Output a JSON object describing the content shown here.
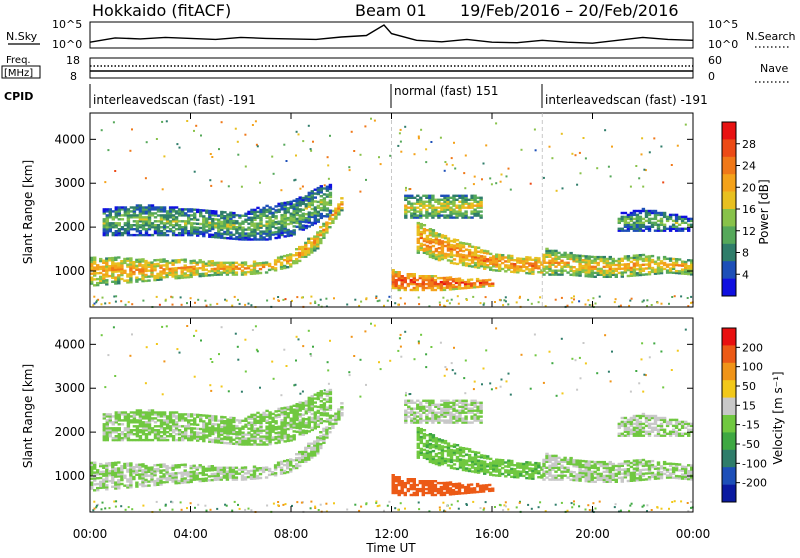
{
  "header": {
    "station": "Hokkaido (fitACF)",
    "beam": "Beam 01",
    "dates": "19/Feb/2016 – 20/Feb/2016"
  },
  "top_panel": {
    "nsky_label": "N.Sky",
    "nsky_ticks": [
      "10^5",
      "10^0"
    ],
    "nsearch_label": "N.Search",
    "nsearch_ticks": [
      "10^5",
      "10^0"
    ],
    "freq_label_1": "Freq.",
    "freq_label_2": "[MHz]",
    "freq_ticks": [
      "18",
      "8"
    ],
    "nave_label": "Nave",
    "nave_ticks": [
      "60",
      "0"
    ],
    "cpid_label": "CPID",
    "cpid_segments": [
      {
        "label": "interleavedscan (fast) -191",
        "start_h": 0,
        "end_h": 12
      },
      {
        "label": "normal (fast) 151",
        "start_h": 12,
        "end_h": 18
      },
      {
        "label": "interleavedscan (fast) -191",
        "start_h": 18,
        "end_h": 24
      }
    ]
  },
  "axes": {
    "y_label": "Slant Range [km]",
    "y_ticks": [
      "1000",
      "2000",
      "3000",
      "4000"
    ],
    "x_label": "Time UT",
    "x_ticks": [
      "00:00",
      "04:00",
      "08:00",
      "12:00",
      "16:00",
      "20:00",
      "00:00"
    ]
  },
  "power_colorbar": {
    "label": "Power [dB]",
    "ticks": [
      "4",
      "8",
      "12",
      "16",
      "20",
      "24",
      "28"
    ],
    "colors": [
      "#1010e0",
      "#1d4fb8",
      "#2f7d6a",
      "#55a85a",
      "#88c24a",
      "#e8c020",
      "#f4a21a",
      "#f07818",
      "#ec4a16",
      "#e81212"
    ]
  },
  "velocity_colorbar": {
    "label": "Velocity [m s⁻¹]",
    "ticks": [
      "200",
      "100",
      "50",
      "15",
      "-15",
      "-50",
      "-100",
      "-200"
    ],
    "colors": [
      "#0a1aa0",
      "#1d4fb8",
      "#2f7d6a",
      "#3ea842",
      "#70c840",
      "#c8c8c8",
      "#f2c81a",
      "#f09418",
      "#ec5a16",
      "#e81010"
    ]
  },
  "chart_data": {
    "type": "heatmap",
    "title": "Hokkaido (fitACF) Beam 01 19/Feb/2016 – 20/Feb/2016",
    "x_range_hours": [
      0,
      24
    ],
    "y_range_km": [
      180,
      4600
    ],
    "power_range_db": [
      0,
      32
    ],
    "velocity_range_ms": [
      -250,
      250
    ],
    "nsky_profile": [
      [
        0,
        1.2
      ],
      [
        1,
        2.1
      ],
      [
        2,
        1.9
      ],
      [
        3,
        2.2
      ],
      [
        4,
        2.0
      ],
      [
        5,
        1.8
      ],
      [
        6,
        2.2
      ],
      [
        7,
        2.0
      ],
      [
        8,
        1.9
      ],
      [
        9,
        1.8
      ],
      [
        10,
        2.3
      ],
      [
        11,
        2.6
      ],
      [
        11.7,
        4.8
      ],
      [
        12,
        3.0
      ],
      [
        13,
        1.6
      ],
      [
        14,
        1.3
      ],
      [
        15,
        1.8
      ],
      [
        16,
        1.2
      ],
      [
        17,
        1.1
      ],
      [
        18,
        1.6
      ],
      [
        19,
        1.2
      ],
      [
        20,
        1.0
      ],
      [
        21,
        1.6
      ],
      [
        22,
        2.2
      ],
      [
        23,
        1.8
      ],
      [
        24,
        1.6
      ]
    ],
    "echo_bands": [
      {
        "t": [
          0,
          1,
          2,
          3,
          4,
          5,
          6,
          7,
          8,
          9,
          9.5,
          10
        ],
        "r_low": [
          650,
          700,
          750,
          800,
          850,
          900,
          900,
          950,
          1100,
          1500,
          2000,
          2400
        ],
        "r_high": [
          1300,
          1300,
          1250,
          1250,
          1250,
          1200,
          1200,
          1200,
          1400,
          1900,
          2300,
          2700
        ],
        "power": 22,
        "velocity": 0
      },
      {
        "t": [
          0.5,
          2,
          4,
          6,
          7,
          8,
          9,
          9.6
        ],
        "r_low": [
          1800,
          1800,
          1800,
          1700,
          1700,
          1800,
          2100,
          2300
        ],
        "r_high": [
          2400,
          2500,
          2400,
          2300,
          2500,
          2600,
          2900,
          3000
        ],
        "power": 14,
        "velocity": 10
      },
      {
        "t": [
          12,
          13,
          14,
          15,
          16
        ],
        "r_low": [
          550,
          550,
          550,
          600,
          650
        ],
        "r_high": [
          1000,
          900,
          850,
          800,
          800
        ],
        "power": 28,
        "velocity": -180
      },
      {
        "t": [
          13,
          14,
          15,
          16,
          17,
          18
        ],
        "r_low": [
          1400,
          1200,
          1100,
          1000,
          950,
          900
        ],
        "r_high": [
          2100,
          1800,
          1600,
          1400,
          1300,
          1300
        ],
        "power": 24,
        "velocity": 40
      },
      {
        "t": [
          18,
          19,
          20,
          21,
          22,
          23,
          24
        ],
        "r_low": [
          900,
          900,
          850,
          850,
          900,
          950,
          900
        ],
        "r_high": [
          1500,
          1400,
          1300,
          1300,
          1350,
          1300,
          1250
        ],
        "power": 21,
        "velocity": 0
      },
      {
        "t": [
          12.5,
          13.5,
          14.5,
          15.5
        ],
        "r_low": [
          2200,
          2200,
          2200,
          2200
        ],
        "r_high": [
          2700,
          2700,
          2700,
          2700
        ],
        "power": 18,
        "velocity": 0
      },
      {
        "t": [
          21,
          22,
          23,
          24
        ],
        "r_low": [
          1900,
          1900,
          1900,
          1900
        ],
        "r_high": [
          2300,
          2400,
          2300,
          2200
        ],
        "power": 13,
        "velocity": 0
      }
    ]
  }
}
